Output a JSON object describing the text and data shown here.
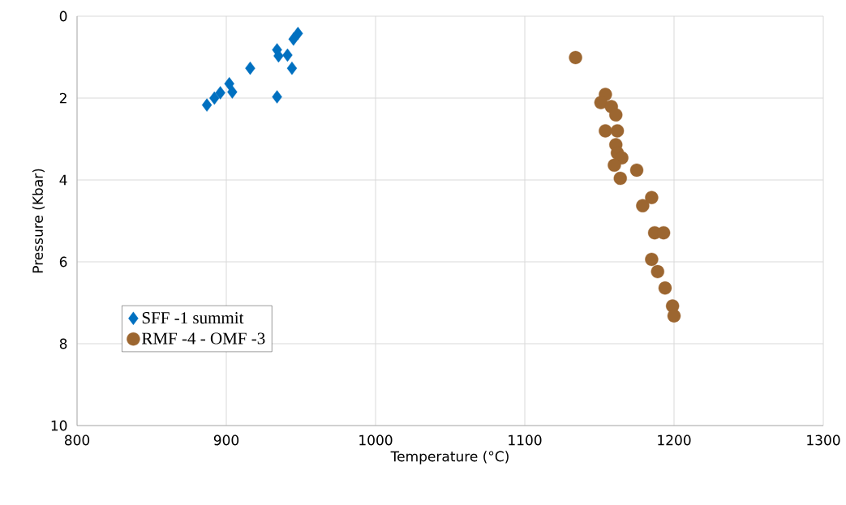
{
  "chart_data": {
    "type": "scatter",
    "xlabel": "Temperature (°C)",
    "ylabel": "Pressure (Kbar)",
    "xlim": [
      800,
      1300
    ],
    "xticks": [
      800,
      900,
      1000,
      1100,
      1200,
      1300
    ],
    "ylim": [
      10,
      0
    ],
    "yticks": [
      0,
      2,
      4,
      6,
      8,
      10
    ],
    "grid": true,
    "legend": "bottom left",
    "series": [
      {
        "name": "SFF -1 summit",
        "color": "#0070c0",
        "marker": "diamond",
        "x": [
          948,
          945,
          934,
          935,
          941,
          944,
          916,
          934,
          902,
          904,
          896,
          892,
          887
        ],
        "values": [
          0.42,
          0.56,
          0.82,
          0.97,
          0.95,
          1.27,
          1.27,
          1.97,
          1.65,
          1.85,
          1.87,
          2.0,
          2.17
        ]
      },
      {
        "name": "RMF -4 - OMF -3",
        "color": "#9c6630",
        "marker": "circle",
        "x": [
          1134,
          1154,
          1151,
          1158,
          1161,
          1154,
          1162,
          1161,
          1162,
          1165,
          1160,
          1175,
          1164,
          1185,
          1179,
          1187,
          1193,
          1185,
          1189,
          1194,
          1199,
          1200
        ],
        "values": [
          1.01,
          1.91,
          2.11,
          2.21,
          2.41,
          2.8,
          2.8,
          3.14,
          3.34,
          3.46,
          3.64,
          3.76,
          3.96,
          4.43,
          4.63,
          5.29,
          5.29,
          5.94,
          6.24,
          6.64,
          7.08,
          7.32
        ]
      }
    ]
  }
}
